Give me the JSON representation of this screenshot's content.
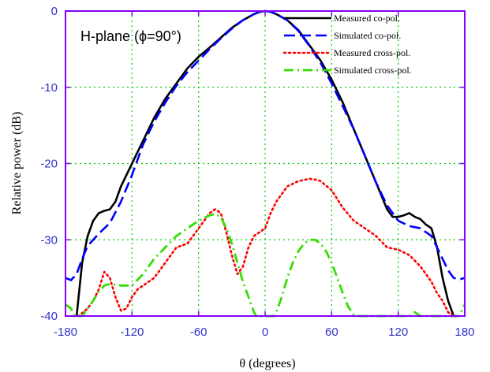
{
  "chart_data": {
    "type": "line",
    "xlabel": "θ (degrees)",
    "ylabel": "Relative power (dB)",
    "annotation": "H-plane (ϕ=90°)",
    "xlim": [
      -180,
      180
    ],
    "ylim": [
      -40,
      0
    ],
    "xticks": [
      "-180",
      "-120",
      "-60",
      "0",
      "60",
      "120",
      "180"
    ],
    "yticks": [
      "0",
      "-10",
      "-20",
      "-30",
      "-40"
    ],
    "grid": true,
    "legend_position": "top-right",
    "colors": {
      "axis": "#8000ff",
      "grid": "#00cc00",
      "tick_label": "#3333cc"
    },
    "series": [
      {
        "name": "Measured co-pol.",
        "color": "#000000",
        "dash": "solid",
        "x": [
          -170,
          -165,
          -160,
          -155,
          -150,
          -145,
          -140,
          -135,
          -130,
          -125,
          -120,
          -110,
          -100,
          -90,
          -80,
          -70,
          -60,
          -50,
          -40,
          -30,
          -20,
          -10,
          -5,
          0,
          5,
          10,
          20,
          30,
          40,
          50,
          60,
          70,
          80,
          90,
          100,
          110,
          115,
          120,
          125,
          130,
          135,
          140,
          145,
          150,
          155,
          160,
          165,
          170,
          173
        ],
        "y": [
          -40,
          -33,
          -29.5,
          -27.5,
          -26.5,
          -26.2,
          -26,
          -25,
          -23,
          -21.5,
          -20,
          -17,
          -14,
          -11.5,
          -9.5,
          -7.5,
          -6,
          -4.8,
          -3.5,
          -2.2,
          -1.2,
          -0.4,
          -0.1,
          0,
          -0.1,
          -0.4,
          -1.2,
          -2.5,
          -4.5,
          -6.5,
          -9,
          -12,
          -15.5,
          -19,
          -22.5,
          -26,
          -27,
          -27,
          -26.8,
          -26.5,
          -27,
          -27.3,
          -28,
          -28.5,
          -31,
          -35,
          -38,
          -40,
          -40
        ]
      },
      {
        "name": "Simulated co-pol.",
        "color": "#0000ff",
        "dash": "long-dash",
        "x": [
          -180,
          -175,
          -170,
          -165,
          -160,
          -150,
          -140,
          -130,
          -120,
          -110,
          -100,
          -90,
          -80,
          -70,
          -60,
          -50,
          -40,
          -30,
          -20,
          -10,
          -5,
          0,
          5,
          10,
          20,
          30,
          40,
          50,
          60,
          70,
          80,
          90,
          100,
          110,
          120,
          130,
          140,
          150,
          160,
          165,
          170,
          175,
          180
        ],
        "y": [
          -35,
          -35.3,
          -34.5,
          -32.5,
          -30.8,
          -29.2,
          -27.8,
          -25,
          -21.5,
          -17.5,
          -14.5,
          -12,
          -9.8,
          -8,
          -6.5,
          -5,
          -3.6,
          -2.3,
          -1.2,
          -0.4,
          -0.1,
          0,
          -0.1,
          -0.4,
          -1.2,
          -2.6,
          -4.6,
          -6.8,
          -9.5,
          -12.5,
          -15.5,
          -19,
          -22.5,
          -25.5,
          -27.5,
          -28.2,
          -28.5,
          -29.5,
          -32.5,
          -34,
          -35,
          -35.2,
          -35
        ]
      },
      {
        "name": "Measured cross-pol.",
        "color": "#ff0000",
        "dash": "dotted",
        "x": [
          -173,
          -168,
          -160,
          -155,
          -150,
          -145,
          -140,
          -135,
          -130,
          -125,
          -120,
          -115,
          -110,
          -100,
          -90,
          -80,
          -70,
          -60,
          -55,
          -50,
          -45,
          -40,
          -35,
          -30,
          -25,
          -20,
          -15,
          -10,
          -5,
          0,
          5,
          10,
          15,
          20,
          30,
          40,
          45,
          50,
          60,
          70,
          80,
          90,
          100,
          110,
          120,
          130,
          140,
          150,
          155,
          160,
          165,
          170
        ],
        "y": [
          -40,
          -40,
          -39,
          -38,
          -36.5,
          -34.2,
          -35,
          -37.5,
          -39.3,
          -39,
          -37.5,
          -36.5,
          -36,
          -35,
          -33,
          -31,
          -30.5,
          -28.5,
          -27.5,
          -26.5,
          -26,
          -26.5,
          -29,
          -32,
          -34.5,
          -33.5,
          -31,
          -29.5,
          -29,
          -28.5,
          -26.5,
          -25,
          -24,
          -23,
          -22.3,
          -22,
          -22.1,
          -22.3,
          -23.5,
          -25.8,
          -27.5,
          -28.5,
          -29.5,
          -31,
          -31.3,
          -32,
          -33.5,
          -35.5,
          -37,
          -38,
          -39.5,
          -40
        ]
      },
      {
        "name": "Simulated cross-pol.",
        "color": "#33dd00",
        "dash": "dash-dot",
        "x": [
          -180,
          -175,
          -172,
          -165,
          -160,
          -155,
          -150,
          -145,
          -140,
          -130,
          -120,
          -110,
          -100,
          -90,
          -80,
          -70,
          -60,
          -50,
          -45,
          -40,
          -35,
          -30,
          -25,
          -20,
          -15,
          -10,
          -8,
          -5,
          -3,
          3,
          5,
          8,
          10,
          15,
          20,
          25,
          30,
          35,
          40,
          45,
          50,
          55,
          60,
          65,
          70,
          75,
          80,
          85,
          130,
          135,
          140,
          175,
          180
        ],
        "y": [
          -38.5,
          -39,
          -40,
          -40,
          -39,
          -38,
          -36.8,
          -36,
          -35.8,
          -36,
          -36,
          -34.5,
          -32.5,
          -31,
          -29.5,
          -28.5,
          -27.5,
          -26.8,
          -26.6,
          -27,
          -28.5,
          -30.5,
          -33,
          -35.5,
          -37.5,
          -39.5,
          -40,
          -40,
          -40,
          -40,
          -40,
          -40,
          -39.5,
          -37.5,
          -35,
          -33,
          -31.5,
          -30.5,
          -30,
          -30,
          -30.5,
          -31.5,
          -33,
          -35,
          -37,
          -38.8,
          -39.8,
          -40,
          -40,
          -39.5,
          -40,
          -40,
          -38.5
        ]
      }
    ]
  }
}
